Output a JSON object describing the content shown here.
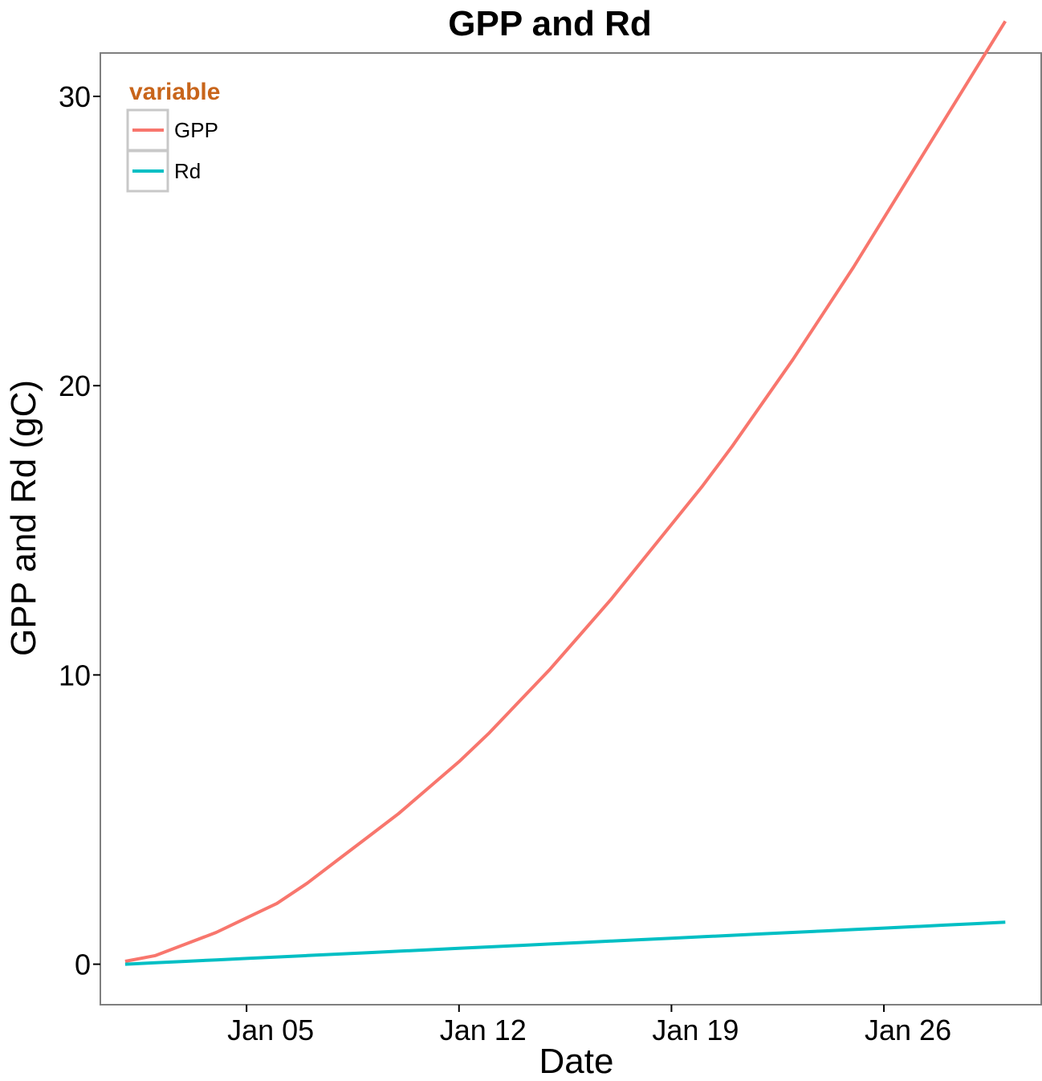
{
  "chart_data": {
    "type": "line",
    "title": "GPP and Rd",
    "xlabel": "Date",
    "ylabel": "GPP and Rd (gC)",
    "x": [
      "Jan 01",
      "Jan 02",
      "Jan 03",
      "Jan 04",
      "Jan 05",
      "Jan 06",
      "Jan 07",
      "Jan 08",
      "Jan 09",
      "Jan 10",
      "Jan 11",
      "Jan 12",
      "Jan 13",
      "Jan 14",
      "Jan 15",
      "Jan 16",
      "Jan 17",
      "Jan 18",
      "Jan 19",
      "Jan 20",
      "Jan 21",
      "Jan 22",
      "Jan 23",
      "Jan 24",
      "Jan 25",
      "Jan 26",
      "Jan 27",
      "Jan 28",
      "Jan 29",
      "Jan 30"
    ],
    "series": [
      {
        "name": "GPP",
        "color": "#F8766D",
        "values": [
          0.1,
          0.3,
          0.7,
          1.1,
          1.6,
          2.1,
          2.8,
          3.6,
          4.4,
          5.2,
          6.1,
          7.0,
          8.0,
          9.1,
          10.2,
          11.4,
          12.6,
          13.9,
          15.2,
          16.5,
          17.9,
          19.4,
          20.9,
          22.5,
          24.1,
          25.8,
          27.5,
          29.2,
          30.9,
          32.6
        ]
      },
      {
        "name": "Rd",
        "color": "#00BFC4",
        "values": [
          0.0,
          0.05,
          0.1,
          0.15,
          0.2,
          0.25,
          0.3,
          0.35,
          0.4,
          0.45,
          0.5,
          0.55,
          0.6,
          0.65,
          0.7,
          0.75,
          0.8,
          0.85,
          0.9,
          0.95,
          1.0,
          1.05,
          1.1,
          1.15,
          1.2,
          1.25,
          1.3,
          1.35,
          1.4,
          1.45
        ]
      }
    ],
    "x_ticks": [
      "Jan 05",
      "Jan 12",
      "Jan 19",
      "Jan 26"
    ],
    "y_ticks": [
      0,
      10,
      20,
      30
    ],
    "ylim": [
      -1.4,
      31.5
    ],
    "xlim": [
      "Dec 31 12h",
      "Jan 31 12h"
    ],
    "grid": false,
    "legend": {
      "title": "variable",
      "title_color": "#C8651B",
      "placement": "top-left",
      "entries": [
        "GPP",
        "Rd"
      ]
    }
  }
}
